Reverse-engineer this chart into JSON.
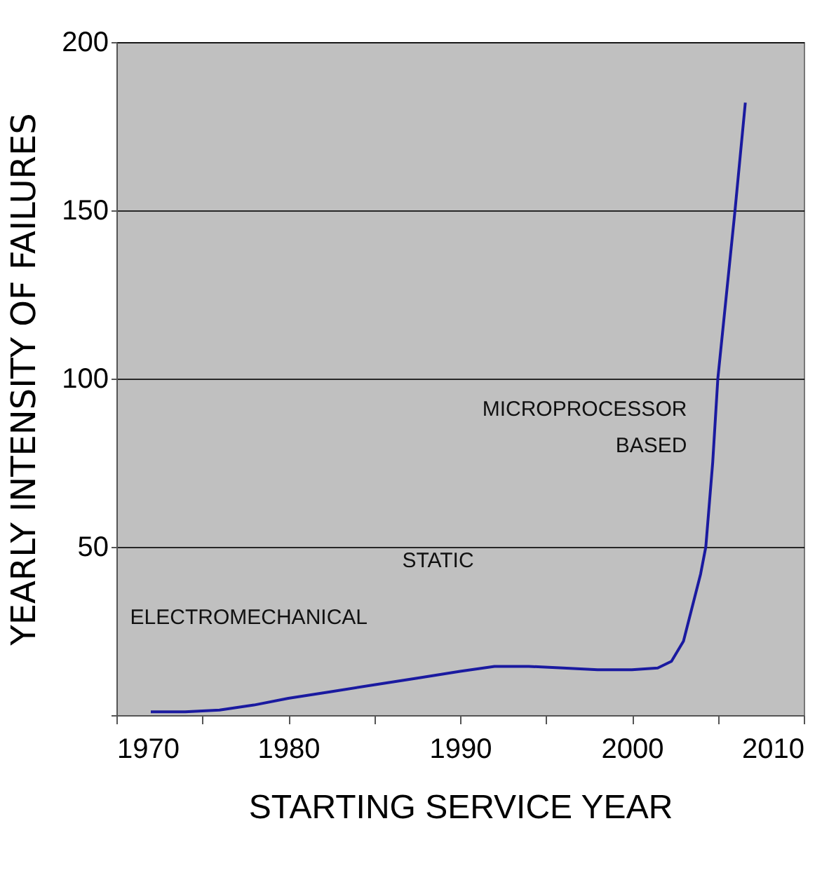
{
  "chart_data": {
    "type": "line",
    "xlabel": "STARTING SERVICE YEAR",
    "ylabel": "YEARLY INTENSITY OF FAILURES",
    "x": [
      1972,
      1974,
      1976,
      1978,
      1980,
      1982.5,
      1985,
      1987.5,
      1990,
      1992,
      1994,
      1996,
      1998,
      2000,
      2001.5,
      2002.3,
      2003,
      2003.5,
      2004,
      2004.3,
      2004.7,
      2005,
      2005.5,
      2006,
      2006.6
    ],
    "series": [
      {
        "color": "#1a1aa0",
        "values": [
          1,
          1,
          1.5,
          3,
          5,
          7,
          9,
          11,
          13,
          14.5,
          14.5,
          14,
          13.5,
          13.5,
          14,
          16,
          22,
          32,
          42,
          50,
          75,
          100,
          125,
          150,
          182
        ]
      }
    ],
    "xlim": [
      1970,
      2010
    ],
    "xticks": [
      1970,
      {
        "value": 1975,
        "label": null
      },
      1980,
      {
        "value": 1985,
        "label": null
      },
      1990,
      {
        "value": 1995,
        "label": null
      },
      2000,
      {
        "value": 2005,
        "label": null
      },
      2010
    ],
    "ylim": [
      0,
      200
    ],
    "yticks": [
      {
        "value": 0,
        "label": null
      },
      50,
      100,
      150,
      200
    ],
    "grid": "y",
    "marker": "none",
    "line_style": "solid",
    "annotations": [
      "ELECTROMECHANICAL",
      "STATIC",
      "MICROPROCESSOR\nBASED"
    ]
  }
}
